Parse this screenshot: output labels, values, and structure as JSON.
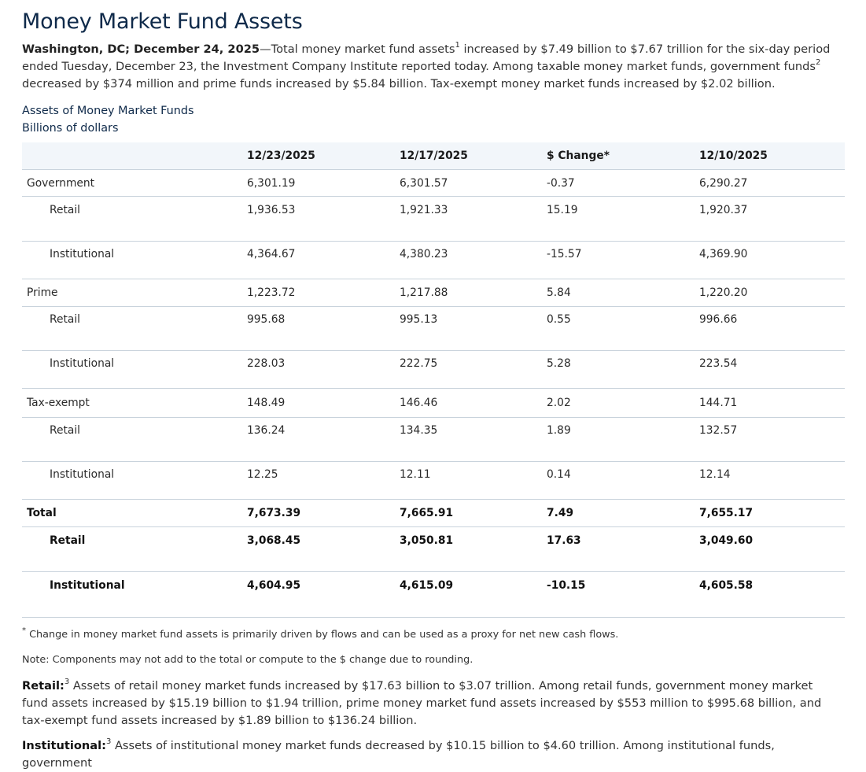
{
  "title": "Money Market Fund Assets",
  "lead": {
    "dateline": "Washington, DC; December 24, 2025",
    "text_a": "—Total money market fund assets",
    "sup1": "1",
    "text_b": " increased by $7.49 billion to $7.67 trillion for the six-day period ended Tuesday, December 23, the Investment Company Institute reported today. Among taxable money market funds, government funds",
    "sup2": "2",
    "text_c": " decreased by $374 million and prime funds increased by $5.84 billion. Tax-exempt money market funds increased by $2.02 billion."
  },
  "caption": {
    "line1": "Assets of Money Market Funds",
    "line2": "Billions of dollars"
  },
  "table": {
    "headers": [
      "",
      "12/23/2025",
      "12/17/2025",
      "$ Change*",
      "12/10/2025"
    ],
    "government": {
      "label": "Government",
      "values": [
        "6,301.19",
        "6,301.57",
        "-0.37",
        "6,290.27"
      ]
    },
    "gov_retail": {
      "label": "Retail",
      "values": [
        "1,936.53",
        "1,921.33",
        "15.19",
        "1,920.37"
      ]
    },
    "gov_inst": {
      "label": "Institutional",
      "values": [
        "4,364.67",
        "4,380.23",
        "-15.57",
        "4,369.90"
      ]
    },
    "prime": {
      "label": "Prime",
      "values": [
        "1,223.72",
        "1,217.88",
        "5.84",
        "1,220.20"
      ]
    },
    "prime_retail": {
      "label": "Retail",
      "values": [
        "995.68",
        "995.13",
        "0.55",
        "996.66"
      ]
    },
    "prime_inst": {
      "label": "Institutional",
      "values": [
        "228.03",
        "222.75",
        "5.28",
        "223.54"
      ]
    },
    "taxexempt": {
      "label": "Tax-exempt",
      "values": [
        "148.49",
        "146.46",
        "2.02",
        "144.71"
      ]
    },
    "tax_retail": {
      "label": "Retail",
      "values": [
        "136.24",
        "134.35",
        "1.89",
        "132.57"
      ]
    },
    "tax_inst": {
      "label": "Institutional",
      "values": [
        "12.25",
        "12.11",
        "0.14",
        "12.14"
      ]
    },
    "total": {
      "label": "Total",
      "values": [
        "7,673.39",
        "7,665.91",
        "7.49",
        "7,655.17"
      ]
    },
    "total_retail": {
      "label": "Retail",
      "values": [
        "3,068.45",
        "3,050.81",
        "17.63",
        "3,049.60"
      ]
    },
    "total_inst": {
      "label": "Institutional",
      "values": [
        "4,604.95",
        "4,615.09",
        "-10.15",
        "4,605.58"
      ]
    }
  },
  "notes": {
    "star_mark": "*",
    "star_note": " Change in money market fund assets is primarily driven by flows and can be used as a proxy for net new cash flows.",
    "rounding_note": "Note: Components may not add to the total or compute to the $ change due to rounding."
  },
  "retail_para": {
    "label": "Retail:",
    "sup": "3",
    "text": " Assets of retail money market funds increased by $17.63 billion to $3.07 trillion. Among retail funds, government money market fund assets increased by $15.19 billion to $1.94 trillion, prime money market fund assets increased by $553 million to $995.68 billion, and tax-exempt fund assets increased by $1.89 billion to $136.24 billion."
  },
  "inst_para": {
    "label": "Institutional:",
    "sup": "3",
    "text": " Assets of institutional money market funds decreased by $10.15 billion to $4.60 trillion. Among institutional funds, government"
  }
}
